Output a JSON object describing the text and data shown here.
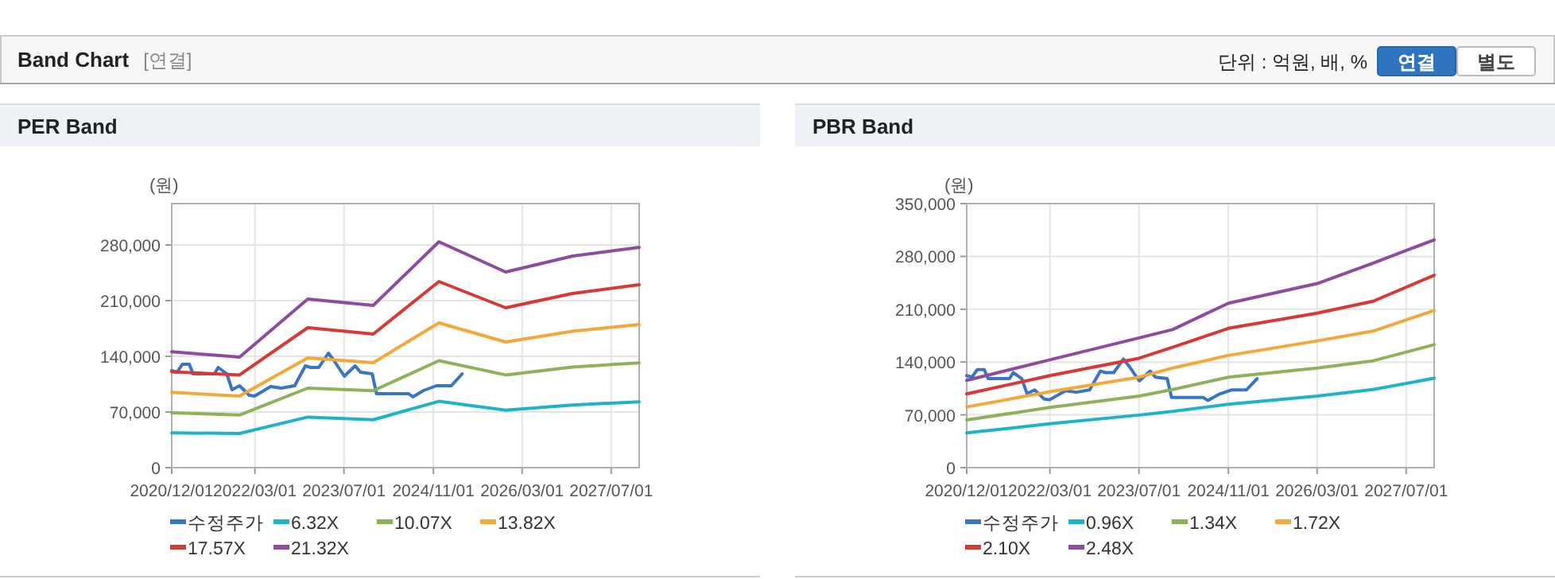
{
  "chart_data": [
    {
      "type": "other",
      "title": "Band Chart",
      "annotations": [
        "[연결]",
        "단위 : 억원, 배, %",
        "연결",
        "별도"
      ]
    },
    {
      "type": "line",
      "title": "PER Band",
      "ylabel": "(원)",
      "grid": true,
      "legend": "bottom",
      "line_style": "solid",
      "xlim": [
        "2020-12-01",
        "2027-12-01"
      ],
      "ylim": [
        0,
        332000
      ],
      "xticks": [
        {
          "value": "2020-12-01",
          "label": "2020/12/01"
        },
        {
          "value": "2022-03-01",
          "label": "2022/03/01"
        },
        {
          "value": "2023-07-01",
          "label": "2023/07/01"
        },
        {
          "value": "2024-11-01",
          "label": "2024/11/01"
        },
        {
          "value": "2026-03-01",
          "label": "2026/03/01"
        },
        {
          "value": "2027-07-01",
          "label": "2027/07/01"
        }
      ],
      "yticks": [
        0,
        {
          "value": 70000,
          "label": "70,000"
        },
        {
          "value": 140000,
          "label": "140,000"
        },
        {
          "value": 210000,
          "label": "210,000"
        },
        {
          "value": 280000,
          "label": "280,000"
        }
      ],
      "series": [
        {
          "name": "수정주가",
          "color": "#3a75c4",
          "x": [
            "2020-12-01",
            "2020-12-30",
            "2021-01-28",
            "2021-03-07",
            "2021-03-28",
            "2021-07-23",
            "2021-08-12",
            "2021-09-28",
            "2021-10-27",
            "2021-12-07",
            "2022-01-29",
            "2022-02-27",
            "2022-05-26",
            "2022-07-23",
            "2022-10-04",
            "2022-12-02",
            "2022-12-31",
            "2023-02-13",
            "2023-04-07",
            "2023-05-06",
            "2023-07-03",
            "2023-08-31",
            "2023-09-29",
            "2023-12-02",
            "2023-12-26",
            "2024-06-18",
            "2024-07-12",
            "2024-09-08",
            "2024-11-17",
            "2025-02-07",
            "2025-04-07"
          ],
          "values": [
            122000,
            120000,
            130000,
            130000,
            118000,
            118000,
            126000,
            118000,
            98000,
            103000,
            91000,
            90000,
            102000,
            100000,
            103000,
            128000,
            126000,
            126000,
            144000,
            135000,
            115000,
            128000,
            120000,
            118000,
            93000,
            93000,
            89000,
            97000,
            103000,
            103000,
            118000
          ]
        },
        {
          "name": "6.32X",
          "color": "#1fb3c8",
          "x": [
            "2020-12-01",
            "2021-12-07",
            "2022-12-15",
            "2023-12-08",
            "2024-12-01",
            "2025-12-01",
            "2026-12-01",
            "2027-12-01"
          ],
          "values": [
            43700,
            43000,
            63600,
            60300,
            83400,
            72200,
            78800,
            82800
          ]
        },
        {
          "name": "10.07X",
          "color": "#8db35a",
          "x": [
            "2020-12-01",
            "2021-12-07",
            "2022-12-15",
            "2023-12-08",
            "2024-12-01",
            "2025-12-01",
            "2026-12-01",
            "2027-12-01"
          ],
          "values": [
            68900,
            66200,
            100000,
            96700,
            134500,
            116600,
            126500,
            131800
          ]
        },
        {
          "name": "13.82X",
          "color": "#f3a83b",
          "x": [
            "2020-12-01",
            "2021-12-07",
            "2022-12-15",
            "2023-12-08",
            "2024-12-01",
            "2025-12-01",
            "2026-12-01",
            "2027-12-01"
          ],
          "values": [
            94700,
            90000,
            138000,
            132000,
            182000,
            158000,
            171500,
            180000
          ]
        },
        {
          "name": "17.57X",
          "color": "#d63a35",
          "x": [
            "2020-12-01",
            "2021-12-07",
            "2022-12-15",
            "2023-12-08",
            "2024-12-01",
            "2025-12-01",
            "2026-12-01",
            "2027-12-01"
          ],
          "values": [
            120500,
            116600,
            176000,
            168000,
            234000,
            201000,
            219000,
            230000
          ]
        },
        {
          "name": "21.32X",
          "color": "#8e4c9e",
          "x": [
            "2020-12-01",
            "2021-12-07",
            "2022-12-15",
            "2023-12-08",
            "2024-12-01",
            "2025-12-01",
            "2026-12-01",
            "2027-12-01"
          ],
          "values": [
            145700,
            139000,
            212000,
            204000,
            284000,
            246000,
            266000,
            277000
          ]
        }
      ]
    },
    {
      "type": "line",
      "title": "PBR Band",
      "ylabel": "(원)",
      "grid": true,
      "legend": "bottom",
      "line_style": "solid",
      "xlim": [
        "2020-12-01",
        "2027-12-01"
      ],
      "ylim": [
        0,
        350000
      ],
      "xticks": [
        {
          "value": "2020-12-01",
          "label": "2020/12/01"
        },
        {
          "value": "2022-03-01",
          "label": "2022/03/01"
        },
        {
          "value": "2023-07-01",
          "label": "2023/07/01"
        },
        {
          "value": "2024-11-01",
          "label": "2024/11/01"
        },
        {
          "value": "2026-03-01",
          "label": "2026/03/01"
        },
        {
          "value": "2027-07-01",
          "label": "2027/07/01"
        }
      ],
      "yticks": [
        0,
        {
          "value": 70000,
          "label": "70,000"
        },
        {
          "value": 140000,
          "label": "140,000"
        },
        {
          "value": 210000,
          "label": "210,000"
        },
        {
          "value": 280000,
          "label": "280,000"
        },
        {
          "value": 350000,
          "label": "350,000"
        }
      ],
      "series": [
        {
          "name": "수정주가",
          "color": "#3a75c4",
          "x": [
            "2020-12-01",
            "2020-12-30",
            "2021-01-28",
            "2021-03-07",
            "2021-03-28",
            "2021-07-23",
            "2021-08-12",
            "2021-09-28",
            "2021-10-27",
            "2021-12-07",
            "2022-01-29",
            "2022-02-27",
            "2022-05-26",
            "2022-07-23",
            "2022-10-04",
            "2022-12-02",
            "2022-12-31",
            "2023-02-13",
            "2023-04-07",
            "2023-05-06",
            "2023-07-03",
            "2023-08-31",
            "2023-09-29",
            "2023-12-02",
            "2023-12-26",
            "2024-06-18",
            "2024-07-12",
            "2024-09-08",
            "2024-11-17",
            "2025-02-07",
            "2025-04-07"
          ],
          "values": [
            122000,
            120000,
            130000,
            130000,
            118000,
            118000,
            126000,
            118000,
            98000,
            103000,
            91000,
            90000,
            102000,
            100000,
            103000,
            128000,
            126000,
            126000,
            144000,
            135000,
            115000,
            128000,
            120000,
            118000,
            93000,
            93000,
            89000,
            97000,
            103000,
            103000,
            118000
          ]
        },
        {
          "name": "0.96X",
          "color": "#1fb3c8",
          "x": [
            "2020-12-01",
            "2022-03-01",
            "2023-07-01",
            "2024-01-01",
            "2024-11-01",
            "2026-03-01",
            "2027-01-01",
            "2027-12-01"
          ],
          "values": [
            46000,
            58200,
            69700,
            74700,
            84000,
            94900,
            103500,
            118600
          ]
        },
        {
          "name": "1.34X",
          "color": "#8db35a",
          "x": [
            "2020-12-01",
            "2022-03-01",
            "2023-07-01",
            "2024-01-01",
            "2024-11-01",
            "2026-03-01",
            "2027-01-01",
            "2027-12-01"
          ],
          "values": [
            63200,
            79800,
            94900,
            103500,
            120000,
            132000,
            141600,
            163000
          ]
        },
        {
          "name": "1.72X",
          "color": "#f3a83b",
          "x": [
            "2020-12-01",
            "2022-03-01",
            "2023-07-01",
            "2024-01-01",
            "2024-11-01",
            "2026-03-01",
            "2027-01-01",
            "2027-12-01"
          ],
          "values": [
            80500,
            100600,
            120000,
            132000,
            148800,
            168000,
            181000,
            208400
          ]
        },
        {
          "name": "2.10X",
          "color": "#d63a35",
          "x": [
            "2020-12-01",
            "2022-03-01",
            "2023-07-01",
            "2024-01-01",
            "2024-11-01",
            "2026-03-01",
            "2027-01-01",
            "2027-12-01"
          ],
          "values": [
            97700,
            122000,
            145000,
            159500,
            184700,
            204800,
            220600,
            255000
          ]
        },
        {
          "name": "2.48X",
          "color": "#8e4c9e",
          "x": [
            "2020-12-01",
            "2022-03-01",
            "2023-07-01",
            "2024-01-01",
            "2024-11-01",
            "2026-03-01",
            "2027-01-01",
            "2027-12-01"
          ],
          "values": [
            115700,
            143000,
            172000,
            183000,
            218000,
            244000,
            271000,
            302000
          ]
        }
      ]
    }
  ]
}
